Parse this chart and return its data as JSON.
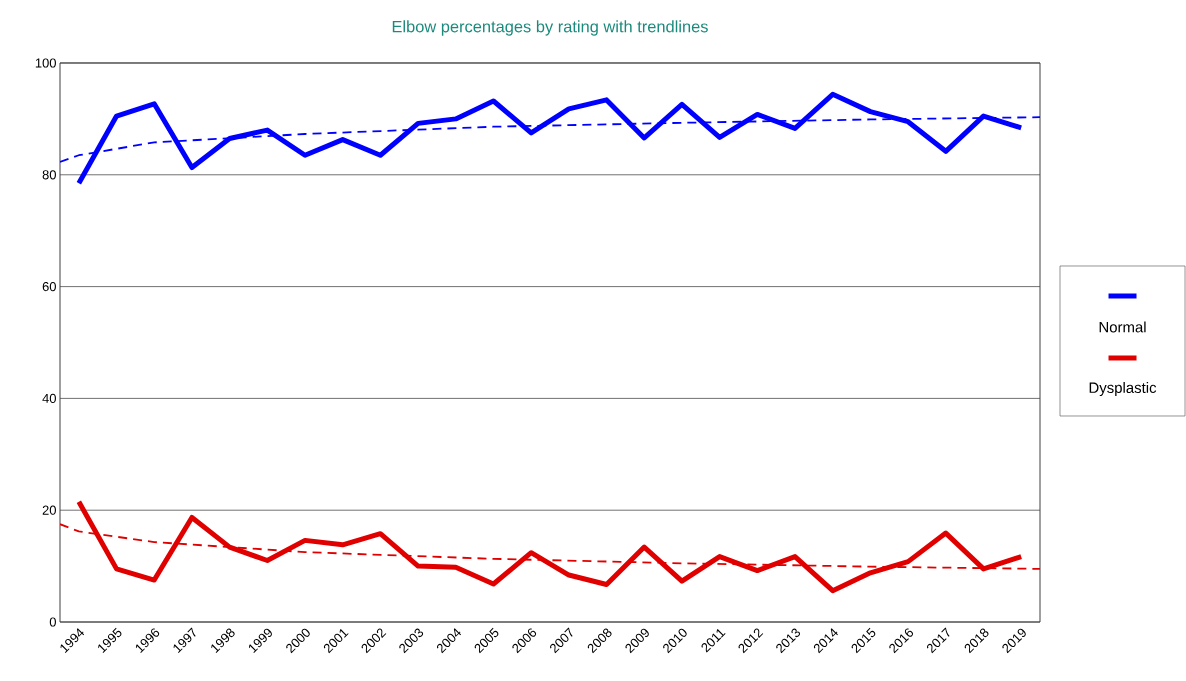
{
  "chart_data": {
    "type": "line",
    "title": "Elbow percentages by rating with trendlines",
    "x": [
      1994,
      1995,
      1996,
      1997,
      1998,
      1999,
      2000,
      2001,
      2002,
      2003,
      2004,
      2005,
      2006,
      2007,
      2008,
      2009,
      2010,
      2011,
      2012,
      2013,
      2014,
      2015,
      2016,
      2017,
      2018,
      2019
    ],
    "series": [
      {
        "name": "Normal",
        "color": "#0000ff",
        "values": [
          78.5,
          90.5,
          92.7,
          81.3,
          86.5,
          88,
          83.5,
          86.3,
          83.5,
          89.2,
          90,
          93.2,
          87.5,
          91.8,
          93.4,
          86.6,
          92.6,
          86.7,
          90.8,
          88.3,
          94.4,
          91.3,
          89.5,
          84.2,
          90.5,
          88.4
        ]
      },
      {
        "name": "Dysplastic",
        "color": "#e00000",
        "values": [
          21.5,
          9.5,
          7.5,
          18.7,
          13.4,
          11,
          14.6,
          13.8,
          15.8,
          10,
          9.8,
          6.8,
          12.4,
          8.4,
          6.7,
          13.4,
          7.3,
          11.7,
          9.2,
          11.7,
          5.6,
          8.8,
          10.8,
          15.9,
          9.5,
          11.7
        ]
      },
      {
        "type": "line",
        "color": "#0000ff",
        "line_style": "dashed",
        "x": [
          1993.5,
          1994,
          1996,
          2000,
          2005,
          2010,
          2015,
          2019.5
        ],
        "values": [
          82.3,
          83.5,
          85.8,
          87.3,
          88.6,
          89.3,
          89.9,
          90.3
        ]
      },
      {
        "type": "line",
        "color": "#e00000",
        "line_style": "dashed",
        "x": [
          1993.5,
          1994,
          1996,
          2000,
          2005,
          2010,
          2015,
          2019.5
        ],
        "values": [
          17.5,
          16.2,
          14.3,
          12.5,
          11.3,
          10.5,
          9.9,
          9.5
        ]
      }
    ],
    "xlim": [
      1993.5,
      2019.5
    ],
    "xticks": [
      1994,
      1995,
      1996,
      1997,
      1998,
      1999,
      2000,
      2001,
      2002,
      2003,
      2004,
      2005,
      2006,
      2007,
      2008,
      2009,
      2010,
      2011,
      2012,
      2013,
      2014,
      2015,
      2016,
      2017,
      2018,
      2019
    ],
    "ylim": [
      0,
      100
    ],
    "yticks": [
      0,
      20,
      40,
      60,
      80,
      100
    ],
    "grid": "y",
    "legend": "right",
    "marker": "none",
    "line_style": "solid"
  }
}
